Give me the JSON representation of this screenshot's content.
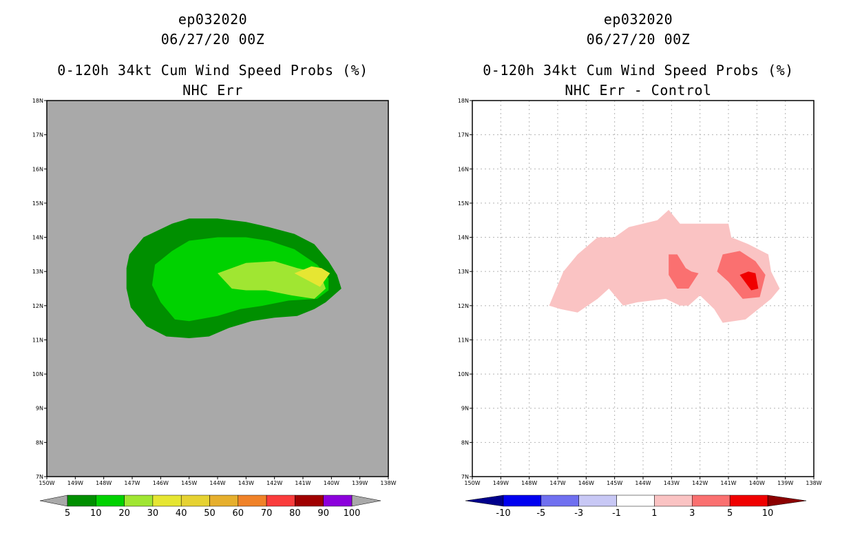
{
  "chart_data": [
    {
      "type": "contour",
      "title_lines": [
        "ep032020",
        "06/27/20 00Z"
      ],
      "subtitle_lines": [
        "0-120h 34kt Cum Wind Speed Probs (%)",
        "NHC Err"
      ],
      "background": "#a9a9a9",
      "grid": false,
      "x_ticks": [
        "150W",
        "149W",
        "148W",
        "147W",
        "146W",
        "145W",
        "144W",
        "143W",
        "142W",
        "141W",
        "140W",
        "139W",
        "138W"
      ],
      "y_ticks": [
        "7N",
        "8N",
        "9N",
        "10N",
        "11N",
        "12N",
        "13N",
        "14N",
        "15N",
        "16N",
        "17N",
        "18N"
      ],
      "xlim_deg_west": [
        150,
        138
      ],
      "ylim_deg_north": [
        7,
        18
      ],
      "colorbar": {
        "colors": [
          "#008f00",
          "#00d200",
          "#a0e632",
          "#e6e632",
          "#e6d232",
          "#e6af2d",
          "#f08228",
          "#fa3c3c",
          "#a00000",
          "#8c00dc"
        ],
        "labels": [
          "5",
          "10",
          "20",
          "30",
          "40",
          "50",
          "60",
          "70",
          "80",
          "90",
          "100"
        ]
      },
      "contours": [
        {
          "level": "5-10",
          "color": "#008f00",
          "points": [
            [
              147.1,
              13.5
            ],
            [
              146.6,
              14.0
            ],
            [
              145.6,
              14.4
            ],
            [
              145.0,
              14.55
            ],
            [
              144.0,
              14.55
            ],
            [
              143.0,
              14.45
            ],
            [
              142.2,
              14.3
            ],
            [
              141.3,
              14.1
            ],
            [
              140.6,
              13.8
            ],
            [
              140.1,
              13.3
            ],
            [
              139.8,
              12.9
            ],
            [
              139.65,
              12.5
            ],
            [
              140.2,
              12.1
            ],
            [
              140.6,
              11.9
            ],
            [
              141.2,
              11.7
            ],
            [
              142.0,
              11.65
            ],
            [
              142.8,
              11.55
            ],
            [
              143.6,
              11.35
            ],
            [
              144.3,
              11.1
            ],
            [
              145.0,
              11.05
            ],
            [
              145.8,
              11.1
            ],
            [
              146.5,
              11.4
            ],
            [
              147.05,
              11.95
            ],
            [
              147.2,
              12.5
            ],
            [
              147.2,
              13.1
            ]
          ]
        },
        {
          "level": "10-20",
          "color": "#00d200",
          "points": [
            [
              146.2,
              13.2
            ],
            [
              145.6,
              13.6
            ],
            [
              145.0,
              13.9
            ],
            [
              144.0,
              14.0
            ],
            [
              143.0,
              14.0
            ],
            [
              142.2,
              13.9
            ],
            [
              141.3,
              13.65
            ],
            [
              140.5,
              13.2
            ],
            [
              140.1,
              12.8
            ],
            [
              140.1,
              12.45
            ],
            [
              140.5,
              12.2
            ],
            [
              141.5,
              12.15
            ],
            [
              142.4,
              12.0
            ],
            [
              143.2,
              11.9
            ],
            [
              144.0,
              11.7
            ],
            [
              145.0,
              11.55
            ],
            [
              145.5,
              11.6
            ],
            [
              146.0,
              12.1
            ],
            [
              146.3,
              12.6
            ]
          ]
        },
        {
          "level": "20-30",
          "color": "#a0e632",
          "points": [
            [
              144.0,
              12.95
            ],
            [
              143.0,
              13.25
            ],
            [
              142.0,
              13.3
            ],
            [
              141.2,
              13.1
            ],
            [
              140.4,
              12.95
            ],
            [
              140.2,
              12.5
            ],
            [
              140.6,
              12.2
            ],
            [
              141.4,
              12.3
            ],
            [
              142.3,
              12.45
            ],
            [
              143.0,
              12.45
            ],
            [
              143.5,
              12.5
            ]
          ]
        },
        {
          "level": "30-40",
          "color": "#e6e632",
          "points": [
            [
              141.3,
              12.95
            ],
            [
              140.7,
              13.15
            ],
            [
              140.35,
              13.1
            ],
            [
              140.05,
              12.95
            ],
            [
              140.4,
              12.55
            ]
          ]
        }
      ]
    },
    {
      "type": "contour",
      "title_lines": [
        "ep032020",
        "06/27/20 00Z"
      ],
      "subtitle_lines": [
        "0-120h 34kt Cum Wind Speed Probs (%)",
        "NHC Err - Control"
      ],
      "background": "#ffffff",
      "grid": true,
      "x_ticks": [
        "150W",
        "149W",
        "148W",
        "147W",
        "146W",
        "145W",
        "144W",
        "143W",
        "142W",
        "141W",
        "140W",
        "139W",
        "138W"
      ],
      "y_ticks": [
        "7N",
        "8N",
        "9N",
        "10N",
        "11N",
        "12N",
        "13N",
        "14N",
        "15N",
        "16N",
        "17N",
        "18N"
      ],
      "xlim_deg_west": [
        150,
        138
      ],
      "ylim_deg_north": [
        7,
        18
      ],
      "colorbar": {
        "colors": [
          "#00008c",
          "#0000f0",
          "#7070f0",
          "#c8c8f5",
          "#ffffff",
          "#fac3c3",
          "#fa7070",
          "#f00000",
          "#8c0000"
        ],
        "labels": [
          "-10",
          "-5",
          "-3",
          "-1",
          "1",
          "3",
          "5",
          "10"
        ]
      },
      "contours": [
        {
          "level": "1-3",
          "color": "#fac3c3",
          "points": [
            [
              147.3,
              12.0
            ],
            [
              146.8,
              13.0
            ],
            [
              146.3,
              13.5
            ],
            [
              145.6,
              14.0
            ],
            [
              145.0,
              14.0
            ],
            [
              144.5,
              14.3
            ],
            [
              143.5,
              14.5
            ],
            [
              143.1,
              14.8
            ],
            [
              142.7,
              14.4
            ],
            [
              141.8,
              14.4
            ],
            [
              141.0,
              14.4
            ],
            [
              140.9,
              14.0
            ],
            [
              140.3,
              13.8
            ],
            [
              139.6,
              13.5
            ],
            [
              139.5,
              13.0
            ],
            [
              139.2,
              12.5
            ],
            [
              139.5,
              12.2
            ],
            [
              140.4,
              11.6
            ],
            [
              141.2,
              11.5
            ],
            [
              141.5,
              11.9
            ],
            [
              142.0,
              12.3
            ],
            [
              142.4,
              12.0
            ],
            [
              142.7,
              12.0
            ],
            [
              143.2,
              12.2
            ],
            [
              144.2,
              12.1
            ],
            [
              144.7,
              12.0
            ],
            [
              145.2,
              12.5
            ],
            [
              145.6,
              12.2
            ],
            [
              146.3,
              11.8
            ],
            [
              146.9,
              11.9
            ]
          ]
        },
        {
          "level": "3-5",
          "color": "#fa7070",
          "points": [
            [
              143.1,
              13.5
            ],
            [
              142.8,
              13.5
            ],
            [
              142.5,
              13.1
            ],
            [
              142.3,
              13.0
            ],
            [
              142.05,
              12.95
            ],
            [
              142.4,
              12.5
            ],
            [
              142.8,
              12.5
            ],
            [
              143.1,
              12.9
            ]
          ]
        },
        {
          "level": "3-5b",
          "color": "#fa7070",
          "points": [
            [
              141.2,
              13.5
            ],
            [
              140.6,
              13.6
            ],
            [
              140.05,
              13.3
            ],
            [
              139.7,
              12.9
            ],
            [
              139.9,
              12.25
            ],
            [
              140.5,
              12.2
            ],
            [
              141.0,
              12.7
            ],
            [
              141.4,
              13.0
            ]
          ]
        },
        {
          "level": "5-10",
          "color": "#f00000",
          "points": [
            [
              140.3,
              13.0
            ],
            [
              140.05,
              12.95
            ],
            [
              139.95,
              12.5
            ],
            [
              140.2,
              12.45
            ],
            [
              140.6,
              12.9
            ]
          ]
        }
      ]
    }
  ]
}
